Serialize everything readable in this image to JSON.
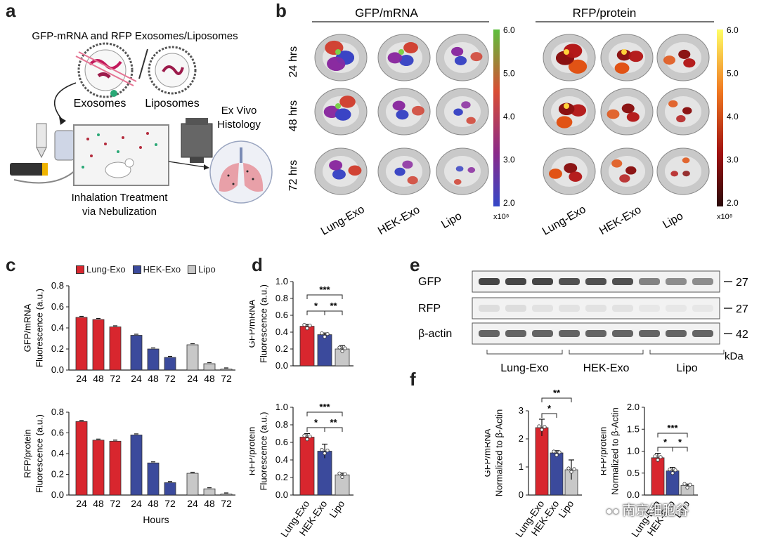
{
  "panel_letters": {
    "a": "a",
    "b": "b",
    "c": "c",
    "d": "d",
    "e": "e",
    "f": "f"
  },
  "panel_a": {
    "title": "GFP-mRNA and RFP Exosomes/Liposomes",
    "exosomes": "Exosomes",
    "liposomes": "Liposomes",
    "ex_vivo": "Ex Vivo",
    "histology": "Histology",
    "inhalation": "Inhalation Treatment",
    "nebulization": "via Nebulization"
  },
  "panel_b": {
    "header_left": "GFP/mRNA",
    "header_right": "RFP/protein",
    "rows": [
      "24 hrs",
      "48 hrs",
      "72 hrs"
    ],
    "columns": [
      "Lung-Exo",
      "HEK-Exo",
      "Lipo"
    ],
    "scale_ticks": [
      "6.0",
      "5.0",
      "4.0",
      "3.0",
      "2.0"
    ],
    "scale_unit": "x10⁸"
  },
  "legend": [
    {
      "name": "Lung-Exo",
      "color": "#d8262e"
    },
    {
      "name": "HEK-Exo",
      "color": "#3b4a9c"
    },
    {
      "name": "Lipo",
      "color": "#c8c8c8"
    }
  ],
  "panel_e": {
    "rows": [
      "GFP",
      "RFP",
      "β-actin"
    ],
    "sizes": [
      "27",
      "27",
      "42"
    ],
    "unit": "kDa",
    "groups": [
      "Lung-Exo",
      "HEK-Exo",
      "Lipo"
    ]
  },
  "watermark": "南京细胞谷",
  "chart_data": [
    {
      "id": "c-top",
      "type": "bar",
      "ylabel": "GFP/mRNA\nFluorescence (a.u.)",
      "ylim": [
        0,
        0.8
      ],
      "yticks": [
        "0.0",
        "0.2",
        "0.4",
        "0.6",
        "0.8"
      ],
      "categories": [
        "24",
        "48",
        "72"
      ],
      "series": [
        {
          "name": "Lung-Exo",
          "values": [
            0.5,
            0.48,
            0.41
          ]
        },
        {
          "name": "HEK-Exo",
          "values": [
            0.33,
            0.2,
            0.12
          ]
        },
        {
          "name": "Lipo",
          "values": [
            0.24,
            0.06,
            0.01
          ]
        }
      ]
    },
    {
      "id": "c-bottom",
      "type": "bar",
      "ylabel": "RFP/protein\nFluorescence (a.u.)",
      "xlabel": "Hours",
      "ylim": [
        0,
        0.8
      ],
      "yticks": [
        "0.0",
        "0.2",
        "0.4",
        "0.6",
        "0.8"
      ],
      "categories": [
        "24",
        "48",
        "72"
      ],
      "series": [
        {
          "name": "Lung-Exo",
          "values": [
            0.71,
            0.53,
            0.52
          ]
        },
        {
          "name": "HEK-Exo",
          "values": [
            0.58,
            0.31,
            0.12
          ]
        },
        {
          "name": "Lipo",
          "values": [
            0.21,
            0.06,
            0.01
          ]
        }
      ]
    },
    {
      "id": "d-top",
      "type": "bar",
      "ylabel": "GFP/mRNA\nFluorescence (a.u.)",
      "ylim": [
        0,
        1.0
      ],
      "yticks": [
        "0.0",
        "0.2",
        "0.4",
        "0.6",
        "0.8",
        "1.0"
      ],
      "categories": [
        "Lung-Exo",
        "HEK-Exo",
        "Lipo"
      ],
      "values": [
        0.47,
        0.37,
        0.2
      ],
      "errors": [
        0.02,
        0.02,
        0.04
      ],
      "significance": [
        {
          "label": "***"
        },
        {
          "label": "*"
        },
        {
          "label": "**"
        }
      ]
    },
    {
      "id": "d-bottom",
      "type": "bar",
      "ylabel": "RFP/protein\nFluorescence (a.u.)",
      "ylim": [
        0,
        1.0
      ],
      "yticks": [
        "0.0",
        "0.2",
        "0.4",
        "0.6",
        "0.8",
        "1.0"
      ],
      "categories": [
        "Lung-Exo",
        "HEK-Exo",
        "Lipo"
      ],
      "values": [
        0.66,
        0.5,
        0.23
      ],
      "errors": [
        0.04,
        0.08,
        0.02
      ],
      "significance": [
        {
          "label": "***"
        },
        {
          "label": "*"
        },
        {
          "label": "**"
        }
      ]
    },
    {
      "id": "f-left",
      "type": "bar",
      "ylabel": "GFP/mRNA\nNormalized to β-Actin",
      "ylim": [
        0,
        3
      ],
      "yticks": [
        "0",
        "1",
        "2",
        "3"
      ],
      "categories": [
        "Lung-Exo",
        "HEK-Exo",
        "Lipo"
      ],
      "values": [
        2.4,
        1.5,
        0.9
      ],
      "errors": [
        0.3,
        0.08,
        0.35
      ],
      "significance": [
        {
          "label": "**"
        },
        {
          "label": "*"
        }
      ]
    },
    {
      "id": "f-right",
      "type": "bar",
      "ylabel": "RFP/protein\nNormalized to β-Actin",
      "ylim": [
        0,
        2.0
      ],
      "yticks": [
        "0.0",
        "0.5",
        "1.0",
        "1.5",
        "2.0"
      ],
      "categories": [
        "Lung-Exo",
        "HEK-Exo",
        "Lipo"
      ],
      "values": [
        0.85,
        0.55,
        0.22
      ],
      "errors": [
        0.1,
        0.08,
        0.03
      ],
      "significance": [
        {
          "label": "***"
        },
        {
          "label": "*"
        },
        {
          "label": "*"
        }
      ]
    }
  ]
}
